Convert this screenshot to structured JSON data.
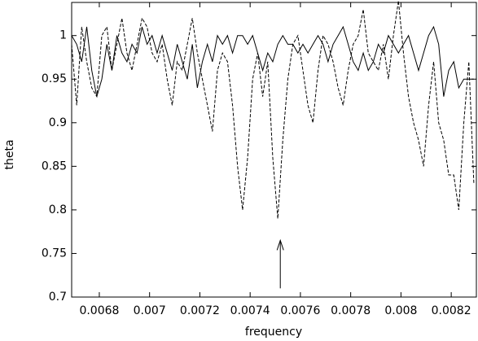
{
  "chart_data": {
    "type": "line",
    "xlabel": "frequency",
    "ylabel": "theta",
    "x": [
      0.00669,
      0.00671,
      0.00673,
      0.00675,
      0.00677,
      0.00679,
      0.00681,
      0.00683,
      0.00685,
      0.00687,
      0.00689,
      0.00691,
      0.00693,
      0.00695,
      0.00697,
      0.00699,
      0.00701,
      0.00703,
      0.00705,
      0.00707,
      0.00709,
      0.00711,
      0.00713,
      0.00715,
      0.00717,
      0.00719,
      0.00721,
      0.00723,
      0.00725,
      0.00727,
      0.00729,
      0.00731,
      0.00733,
      0.00735,
      0.00737,
      0.00739,
      0.00741,
      0.00743,
      0.00745,
      0.00747,
      0.00749,
      0.00751,
      0.00753,
      0.00755,
      0.00757,
      0.00759,
      0.00761,
      0.00763,
      0.00765,
      0.00767,
      0.00769,
      0.00771,
      0.00773,
      0.00775,
      0.00777,
      0.00779,
      0.00781,
      0.00783,
      0.00785,
      0.00787,
      0.00789,
      0.00791,
      0.00793,
      0.00795,
      0.00797,
      0.00799,
      0.00801,
      0.00803,
      0.00805,
      0.00807,
      0.00809,
      0.00811,
      0.00813,
      0.00815,
      0.00817,
      0.00819,
      0.00821,
      0.00823,
      0.00825,
      0.00827,
      0.00829
    ],
    "series": [
      {
        "color": "#000000",
        "style": "solid",
        "values": [
          1.0,
          0.99,
          0.97,
          1.01,
          0.96,
          0.93,
          0.95,
          0.99,
          0.96,
          1.0,
          0.98,
          0.97,
          0.99,
          0.98,
          1.01,
          0.99,
          1.0,
          0.98,
          1.0,
          0.98,
          0.96,
          0.99,
          0.97,
          0.95,
          0.99,
          0.94,
          0.97,
          0.99,
          0.97,
          1.0,
          0.99,
          1.0,
          0.98,
          1.0,
          1.0,
          0.99,
          1.0,
          0.98,
          0.96,
          0.98,
          0.97,
          0.99,
          1.0,
          0.99,
          0.99,
          0.98,
          0.99,
          0.98,
          0.99,
          1.0,
          0.99,
          0.97,
          0.99,
          1.0,
          1.01,
          0.99,
          0.97,
          0.96,
          0.98,
          0.96,
          0.97,
          0.99,
          0.98,
          1.0,
          0.99,
          0.98,
          0.99,
          1.0,
          0.98,
          0.96,
          0.98,
          1.0,
          1.01,
          0.99,
          0.93,
          0.96,
          0.97,
          0.94,
          0.95,
          0.95,
          0.95
        ]
      },
      {
        "color": "#000000",
        "style": "dashed",
        "values": [
          0.99,
          0.92,
          1.01,
          0.97,
          0.94,
          0.93,
          1.0,
          1.01,
          0.96,
          0.99,
          1.02,
          0.98,
          0.96,
          0.99,
          1.02,
          1.01,
          0.98,
          0.97,
          0.99,
          0.95,
          0.92,
          0.97,
          0.96,
          0.99,
          1.02,
          0.98,
          0.95,
          0.92,
          0.89,
          0.96,
          0.98,
          0.97,
          0.92,
          0.85,
          0.8,
          0.86,
          0.95,
          0.98,
          0.93,
          0.97,
          0.86,
          0.79,
          0.88,
          0.95,
          0.99,
          1.0,
          0.96,
          0.92,
          0.9,
          0.96,
          1.0,
          0.99,
          0.97,
          0.94,
          0.92,
          0.96,
          0.99,
          1.0,
          1.03,
          0.98,
          0.97,
          0.96,
          0.99,
          0.95,
          1.0,
          1.04,
          0.98,
          0.93,
          0.9,
          0.88,
          0.85,
          0.92,
          0.97,
          0.9,
          0.88,
          0.84,
          0.84,
          0.8,
          0.9,
          0.97,
          0.83
        ]
      }
    ],
    "arrow": {
      "x": 0.00752,
      "y": [
        0.71,
        0.765
      ]
    },
    "xlim": [
      0.00669,
      0.0083
    ],
    "ylim": [
      0.7,
      1.038
    ],
    "xticks": [
      0.0068,
      0.007,
      0.0072,
      0.0074,
      0.0076,
      0.0078,
      0.008,
      0.0082
    ],
    "yticks": [
      0.7,
      0.75,
      0.8,
      0.85,
      0.9,
      0.95,
      1
    ],
    "grid": false
  }
}
